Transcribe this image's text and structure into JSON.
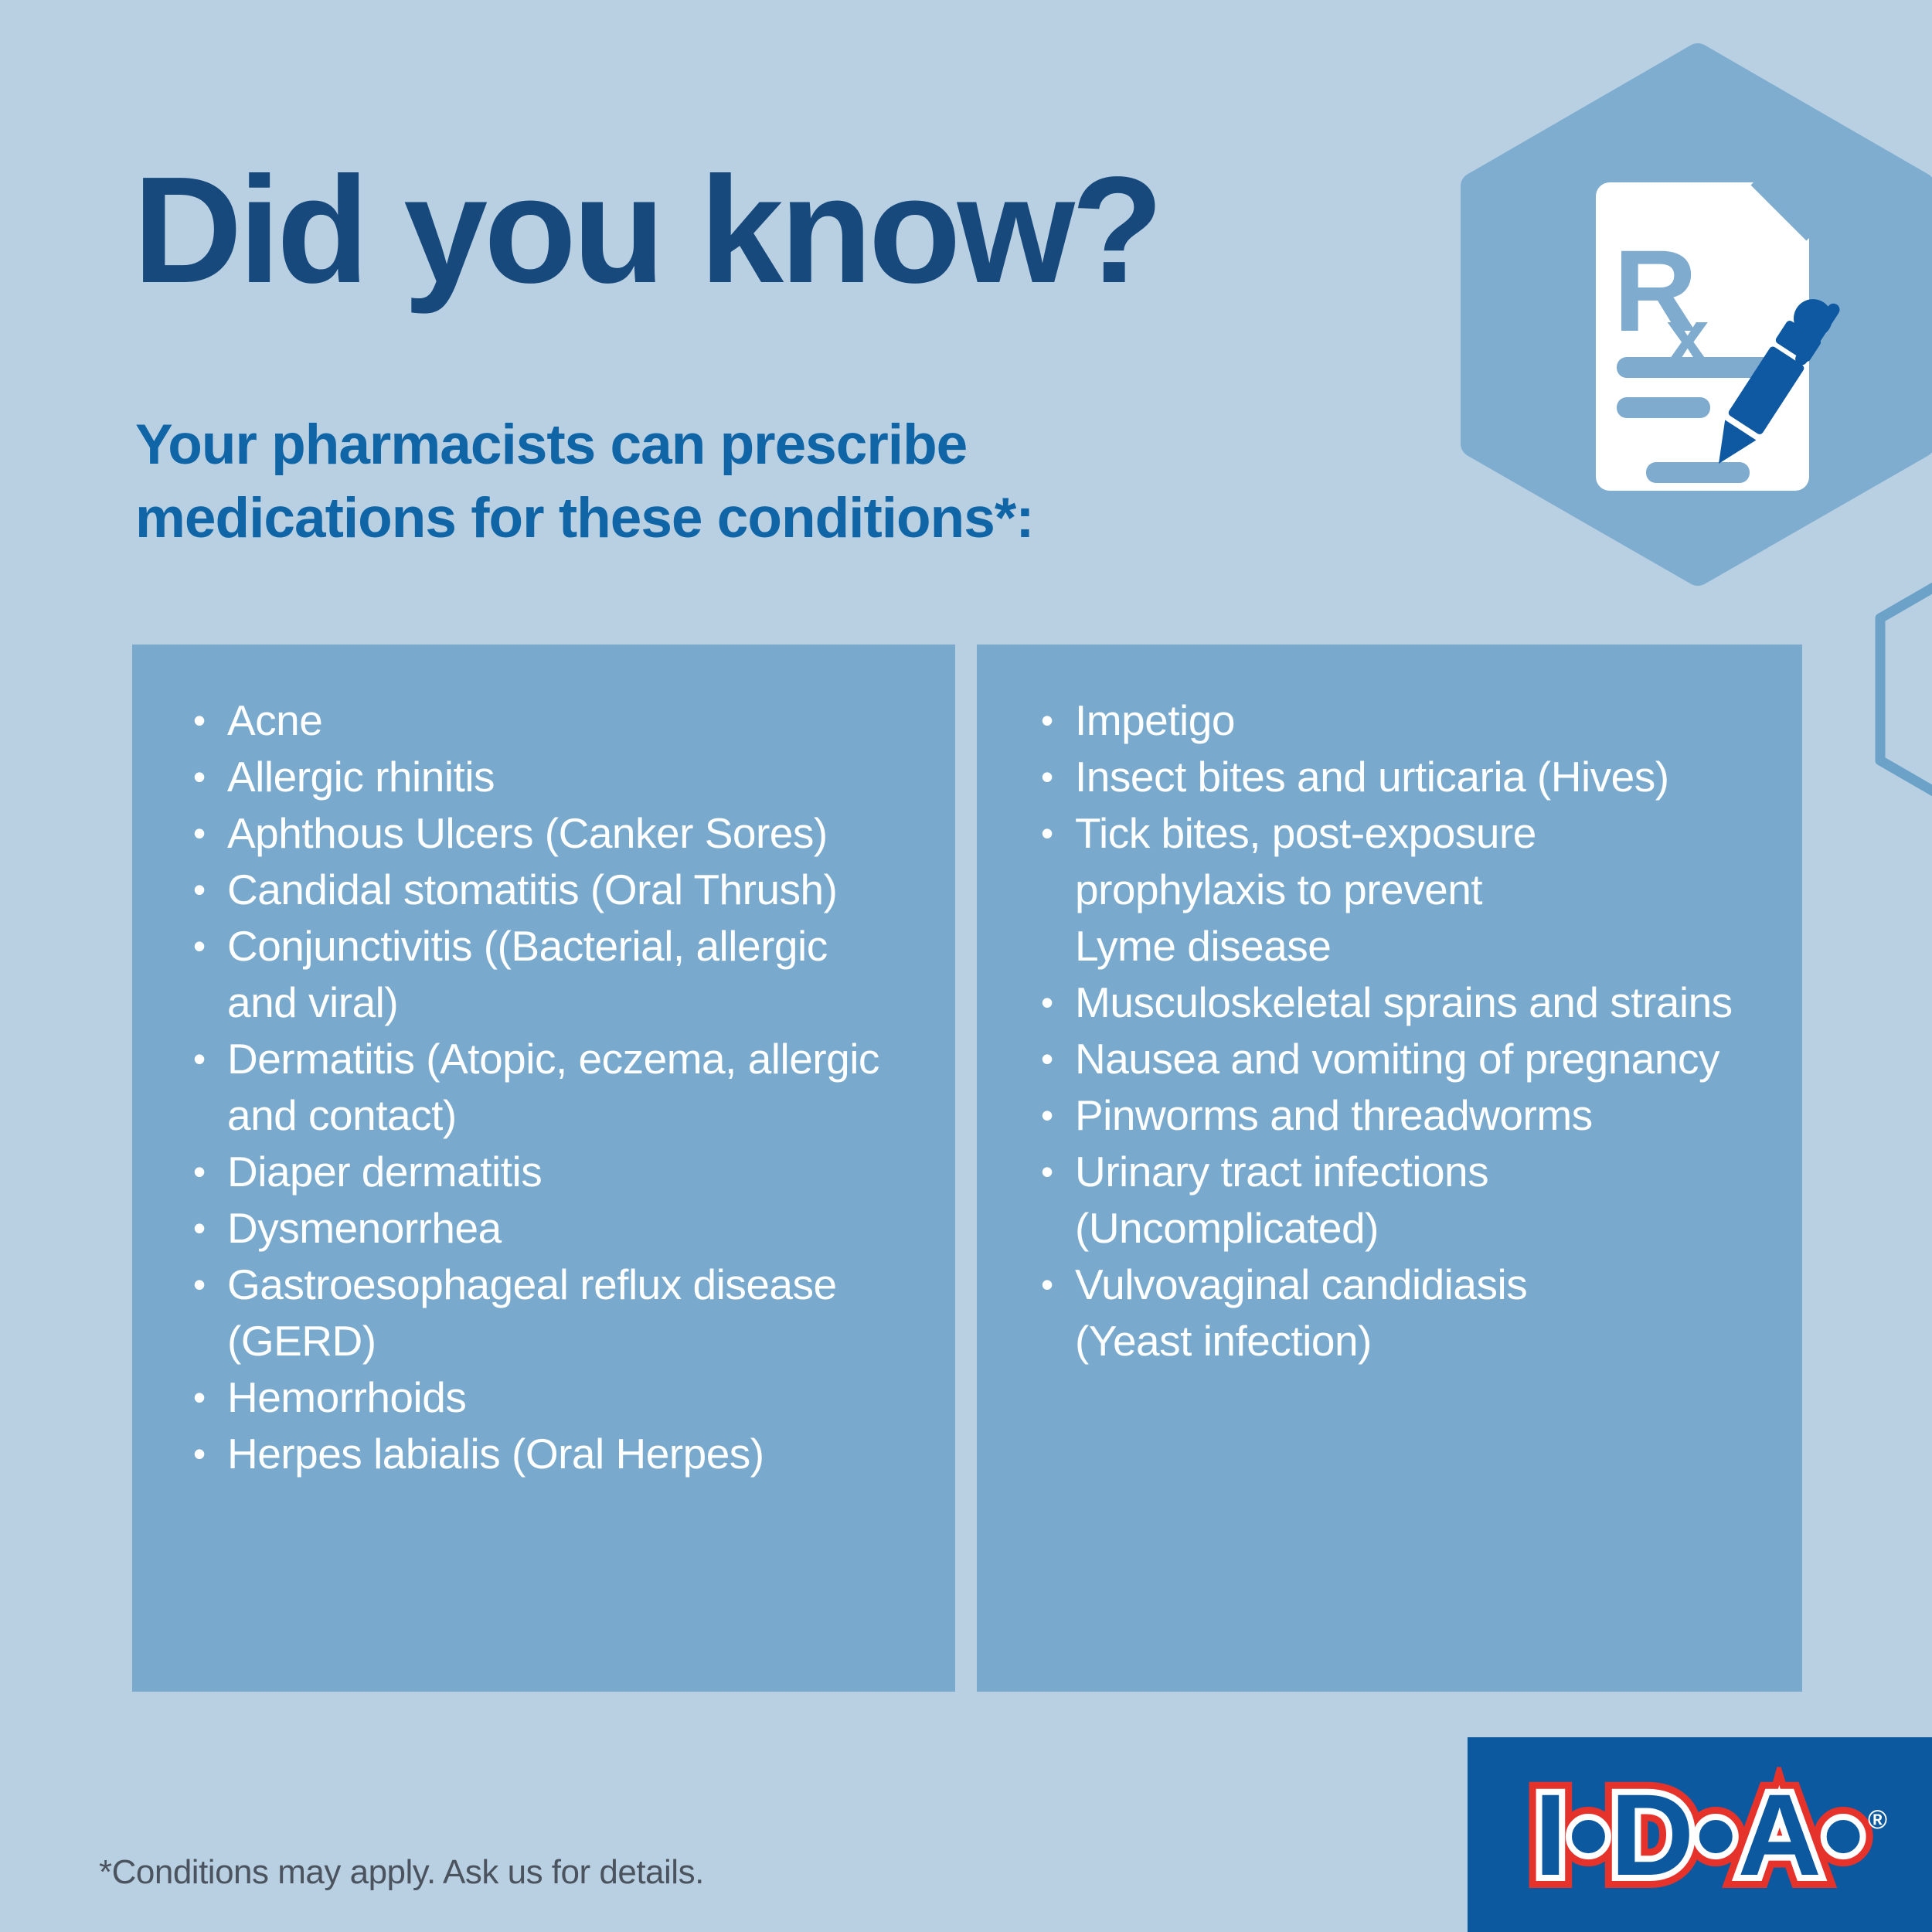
{
  "page": {
    "background_color": "#b9d0e3",
    "panel_color": "#79aace",
    "hexagon_color": "#7fadd0",
    "outline_hexagon_color": "#6da2c8"
  },
  "header": {
    "title": "Did you know?",
    "title_color": "#17497c",
    "subtitle_line1": "Your pharmacists can prescribe",
    "subtitle_line2": "medications for these conditions*:",
    "subtitle_color": "#1065a7"
  },
  "hex_icon": {
    "name": "prescription-document-with-pen",
    "rx_r": "R",
    "rx_x": "x",
    "document_color": "#ffffff",
    "accent_color": "#7fabce",
    "pen_color": "#0e59a1"
  },
  "lists": {
    "bullet_char": "•",
    "text_color": "#ffffff",
    "left": [
      {
        "text": "Acne"
      },
      {
        "text": "Allergic rhinitis"
      },
      {
        "text": "Aphthous Ulcers (Canker Sores)"
      },
      {
        "text": "Candidal stomatitis (Oral Thrush)"
      },
      {
        "text": "Conjunctivitis ((Bacterial, allergic"
      },
      {
        "text": "and viral)",
        "cont": true
      },
      {
        "text": "Dermatitis (Atopic, eczema, allergic"
      },
      {
        "text": "and contact)",
        "cont": true
      },
      {
        "text": "Diaper dermatitis"
      },
      {
        "text": "Dysmenorrhea"
      },
      {
        "text": "Gastroesophageal reflux disease"
      },
      {
        "text": "(GERD)",
        "cont": true
      },
      {
        "text": "Hemorrhoids"
      },
      {
        "text": "Herpes labialis (Oral Herpes)"
      }
    ],
    "right": [
      {
        "text": "Impetigo"
      },
      {
        "text": "Insect bites and urticaria (Hives)"
      },
      {
        "text": "Tick bites, post-exposure"
      },
      {
        "text": "prophylaxis to prevent",
        "cont": true
      },
      {
        "text": "Lyme disease",
        "cont": true
      },
      {
        "text": "Musculoskeletal sprains and strains"
      },
      {
        "text": "Nausea and vomiting of pregnancy"
      },
      {
        "text": "Pinworms and threadworms"
      },
      {
        "text": "Urinary tract infections"
      },
      {
        "text": "(Uncomplicated)",
        "cont": true
      },
      {
        "text": "Vulvovaginal candidiasis"
      },
      {
        "text": "(Yeast infection)",
        "cont": true
      }
    ]
  },
  "footer": {
    "note": "*Conditions may apply. Ask us for details."
  },
  "logo": {
    "text": "I•D•A•",
    "registered_mark": "®",
    "box_color": "#0d59a0",
    "outline_red": "#e5332c",
    "outline_white": "#ffffff"
  }
}
